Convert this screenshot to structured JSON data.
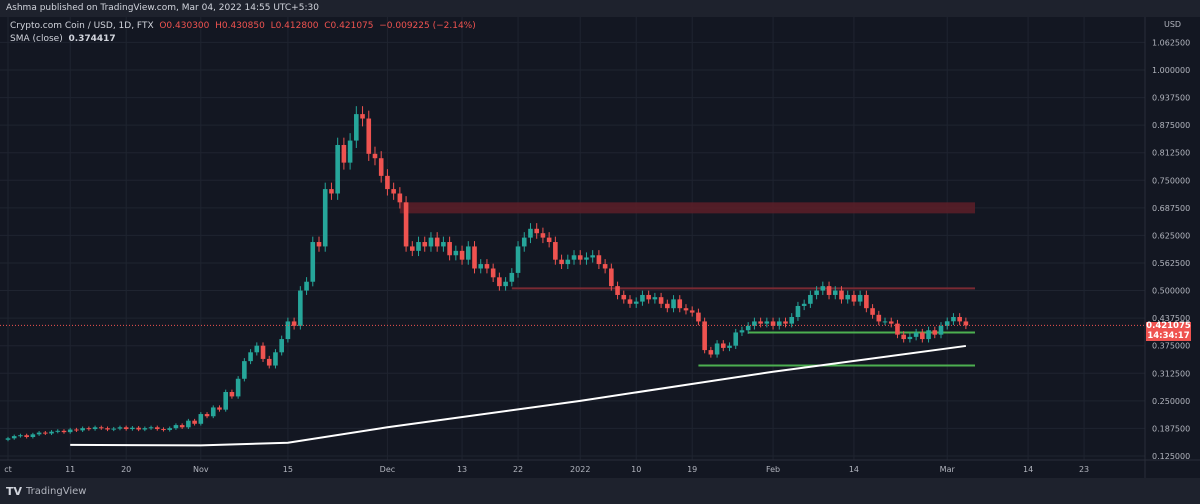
{
  "header": {
    "published": "Ashma published on TradingView.com, Mar 04, 2022 14:55 UTC+5:30"
  },
  "legend": {
    "symbol": "Crypto.com Coin / USD, 1D, FTX",
    "o": "O0.430300",
    "h": "H0.430850",
    "l": "L0.412800",
    "c": "C0.421075",
    "change": "−0.009225 (−2.14%)",
    "sma_label": "SMA (close)",
    "sma_value": "0.374417"
  },
  "price_axis": {
    "currency": "USD",
    "current_price": "0.421075",
    "countdown": "14:34:17"
  },
  "footer": {
    "brand": "TradingView"
  },
  "colors": {
    "up": "#26a69a",
    "down": "#ef5350",
    "sma": "#ffffff",
    "support": "#4caf50",
    "resistance_zone": "#5d1f28",
    "background": "#131722"
  },
  "chart_data": {
    "type": "candlestick",
    "title": "Crypto.com Coin / USD, 1D, FTX",
    "start_date": "2021-10-01",
    "ylim": [
      0.11,
      1.1
    ],
    "y_ticks": [
      "1.062500",
      "1.000000",
      "0.937500",
      "0.875000",
      "0.812500",
      "0.750000",
      "0.687500",
      "0.625000",
      "0.562500",
      "0.500000",
      "0.437500",
      "0.375000",
      "0.312500",
      "0.250000",
      "0.187500",
      "0.125000"
    ],
    "x_ticks": [
      {
        "label": "ct",
        "date": "2021-10-01"
      },
      {
        "label": "11",
        "date": "2021-10-11"
      },
      {
        "label": "20",
        "date": "2021-10-20"
      },
      {
        "label": "Nov",
        "date": "2021-11-01"
      },
      {
        "label": "15",
        "date": "2021-11-15"
      },
      {
        "label": "Dec",
        "date": "2021-12-01"
      },
      {
        "label": "13",
        "date": "2021-12-13"
      },
      {
        "label": "22",
        "date": "2021-12-22"
      },
      {
        "label": "2022",
        "date": "2022-01-01"
      },
      {
        "label": "10",
        "date": "2022-01-10"
      },
      {
        "label": "19",
        "date": "2022-01-19"
      },
      {
        "label": "Feb",
        "date": "2022-02-01"
      },
      {
        "label": "14",
        "date": "2022-02-14"
      },
      {
        "label": "Mar",
        "date": "2022-03-01"
      },
      {
        "label": "14",
        "date": "2022-03-14"
      },
      {
        "label": "23",
        "date": "2022-03-23"
      }
    ],
    "closes": [
      0.165,
      0.17,
      0.172,
      0.168,
      0.174,
      0.178,
      0.176,
      0.18,
      0.182,
      0.179,
      0.185,
      0.183,
      0.188,
      0.186,
      0.19,
      0.188,
      0.185,
      0.187,
      0.19,
      0.186,
      0.189,
      0.185,
      0.188,
      0.19,
      0.186,
      0.184,
      0.188,
      0.195,
      0.19,
      0.205,
      0.198,
      0.22,
      0.215,
      0.235,
      0.23,
      0.27,
      0.26,
      0.3,
      0.34,
      0.36,
      0.375,
      0.345,
      0.33,
      0.36,
      0.39,
      0.43,
      0.42,
      0.5,
      0.52,
      0.61,
      0.6,
      0.73,
      0.72,
      0.83,
      0.79,
      0.84,
      0.9,
      0.89,
      0.81,
      0.8,
      0.76,
      0.73,
      0.72,
      0.7,
      0.6,
      0.59,
      0.61,
      0.6,
      0.62,
      0.6,
      0.61,
      0.58,
      0.59,
      0.57,
      0.6,
      0.55,
      0.56,
      0.55,
      0.53,
      0.51,
      0.52,
      0.54,
      0.6,
      0.62,
      0.64,
      0.63,
      0.62,
      0.61,
      0.57,
      0.56,
      0.57,
      0.58,
      0.57,
      0.575,
      0.58,
      0.56,
      0.55,
      0.51,
      0.49,
      0.48,
      0.47,
      0.475,
      0.49,
      0.48,
      0.485,
      0.47,
      0.46,
      0.48,
      0.46,
      0.455,
      0.45,
      0.43,
      0.365,
      0.355,
      0.38,
      0.37,
      0.375,
      0.405,
      0.41,
      0.42,
      0.43,
      0.425,
      0.43,
      0.42,
      0.43,
      0.425,
      0.44,
      0.465,
      0.47,
      0.49,
      0.5,
      0.51,
      0.49,
      0.5,
      0.48,
      0.49,
      0.475,
      0.49,
      0.46,
      0.445,
      0.43,
      0.43,
      0.425,
      0.4,
      0.39,
      0.395,
      0.405,
      0.39,
      0.41,
      0.4,
      0.42,
      0.4303,
      0.44,
      0.43,
      0.421075
    ],
    "sma": [
      {
        "date": "2021-10-11",
        "value": 0.15
      },
      {
        "date": "2021-11-01",
        "value": 0.149
      },
      {
        "date": "2021-11-15",
        "value": 0.155
      },
      {
        "date": "2021-12-01",
        "value": 0.19
      },
      {
        "date": "2022-01-01",
        "value": 0.25
      },
      {
        "date": "2022-02-01",
        "value": 0.316
      },
      {
        "date": "2022-03-04",
        "value": 0.374417
      }
    ],
    "annotations": [
      {
        "type": "zone",
        "from_date": "2021-12-03",
        "low": 0.675,
        "high": 0.7,
        "color": "#5d1f28"
      },
      {
        "type": "hline",
        "from_date": "2021-12-21",
        "value": 0.505,
        "color": "#7a2a33"
      },
      {
        "type": "hline",
        "from_date": "2022-01-28",
        "value": 0.405,
        "color": "#4caf50"
      },
      {
        "type": "hline",
        "from_date": "2022-01-20",
        "value": 0.33,
        "color": "#4caf50"
      }
    ]
  }
}
